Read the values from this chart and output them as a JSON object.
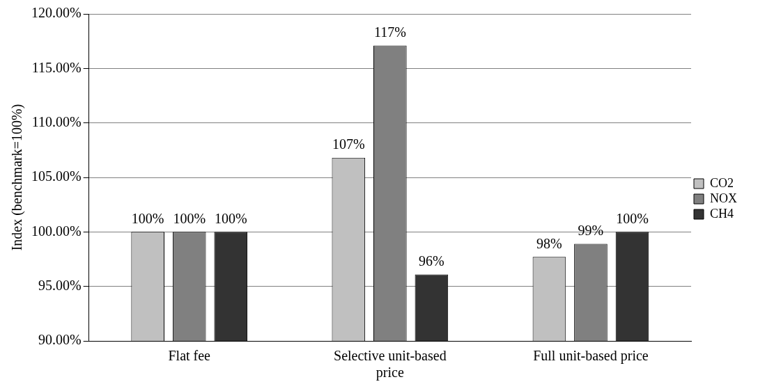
{
  "chart_data": {
    "type": "bar",
    "ylabel": "Index (benchmark=100%)",
    "categories": [
      "Flat fee",
      "Selective unit-based price",
      "Full unit-based price"
    ],
    "series": [
      {
        "name": "CO2",
        "color": "#c0c0c0",
        "values": [
          100,
          106.8,
          97.7
        ],
        "value_labels": [
          "100%",
          "107%",
          "98%"
        ]
      },
      {
        "name": "NOX",
        "color": "#808080",
        "values": [
          100,
          117.1,
          98.9
        ],
        "value_labels": [
          "100%",
          "117%",
          "99%"
        ]
      },
      {
        "name": "CH4",
        "color": "#333333",
        "values": [
          100,
          96.1,
          100
        ],
        "value_labels": [
          "100%",
          "96%",
          "100%"
        ]
      }
    ],
    "ylim": [
      90,
      120
    ],
    "yticks": [
      {
        "value": 90,
        "label": "90.00%"
      },
      {
        "value": 95,
        "label": "95.00%"
      },
      {
        "value": 100,
        "label": "100.00%"
      },
      {
        "value": 105,
        "label": "105.00%"
      },
      {
        "value": 110,
        "label": "110.00%"
      },
      {
        "value": 115,
        "label": "115.00%"
      },
      {
        "value": 120,
        "label": "120.00%"
      }
    ],
    "grid": "y",
    "legend": "right"
  }
}
